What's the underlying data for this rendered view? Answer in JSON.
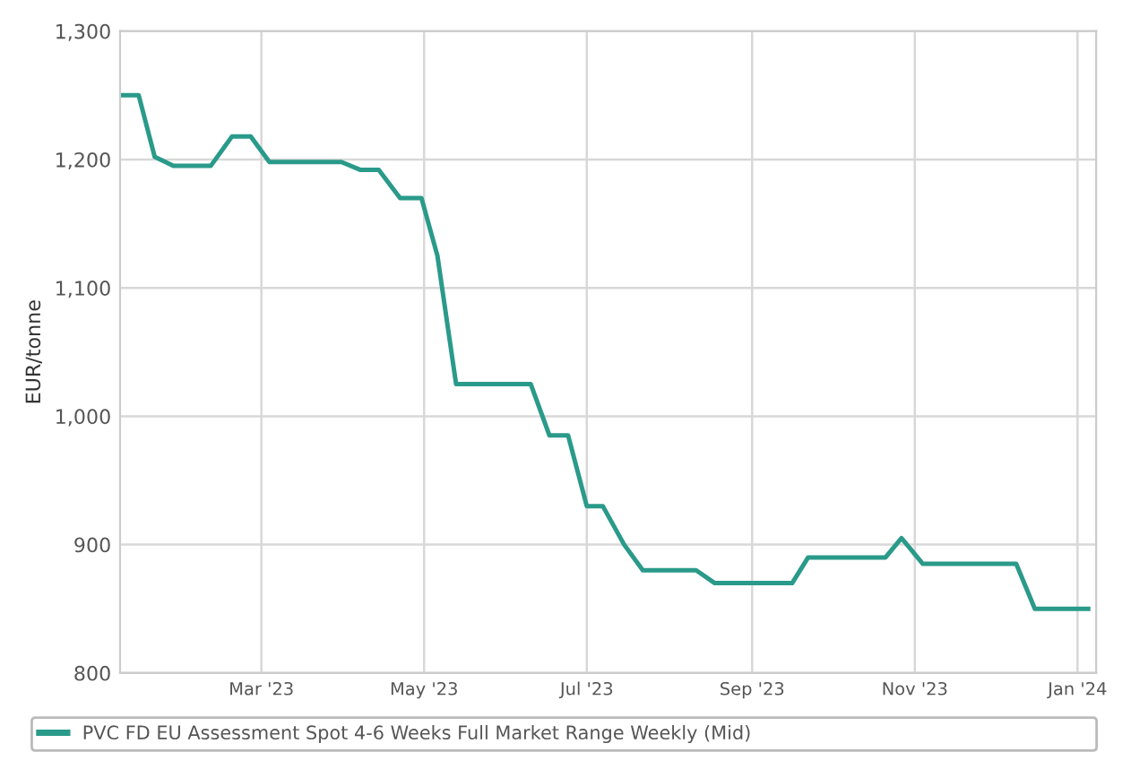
{
  "chart_data": {
    "type": "line",
    "ylabel": "EUR/tonne",
    "x": [
      "2023-01-07",
      "2023-01-14",
      "2023-01-20",
      "2023-01-27",
      "2023-02-10",
      "2023-02-18",
      "2023-02-25",
      "2023-03-04",
      "2023-03-31",
      "2023-04-07",
      "2023-04-14",
      "2023-04-22",
      "2023-04-30",
      "2023-05-06",
      "2023-05-13",
      "2023-06-10",
      "2023-06-17",
      "2023-06-24",
      "2023-07-01",
      "2023-07-07",
      "2023-07-15",
      "2023-07-22",
      "2023-08-11",
      "2023-08-18",
      "2023-09-16",
      "2023-09-22",
      "2023-10-21",
      "2023-10-27",
      "2023-11-04",
      "2023-12-09",
      "2023-12-16",
      "2024-01-05"
    ],
    "series": [
      {
        "name": "PVC FD EU Assessment Spot 4-6 Weeks Full Market Range Weekly (Mid)",
        "color": "#2a9a8a",
        "values": [
          1250,
          1250,
          1202,
          1195,
          1195,
          1218,
          1218,
          1198,
          1198,
          1192,
          1192,
          1170,
          1170,
          1125,
          1025,
          1025,
          985,
          985,
          930,
          930,
          900,
          880,
          880,
          870,
          870,
          890,
          890,
          905,
          885,
          885,
          850,
          850
        ]
      }
    ],
    "xlim": [
      "2023-01-07",
      "2024-01-08"
    ],
    "xticks": [
      {
        "value": "2023-03-01",
        "label": "Mar '23"
      },
      {
        "value": "2023-05-01",
        "label": "May '23"
      },
      {
        "value": "2023-07-01",
        "label": "Jul '23"
      },
      {
        "value": "2023-09-01",
        "label": "Sep '23"
      },
      {
        "value": "2023-11-01",
        "label": "Nov '23"
      },
      {
        "value": "2024-01-01",
        "label": "Jan '24"
      }
    ],
    "ylim": [
      800,
      1300
    ],
    "yticks": [
      {
        "value": 800,
        "label": "800"
      },
      {
        "value": 900,
        "label": "900"
      },
      {
        "value": 1000,
        "label": "1,000"
      },
      {
        "value": 1100,
        "label": "1,100"
      },
      {
        "value": 1200,
        "label": "1,200"
      },
      {
        "value": 1300,
        "label": "1,300"
      }
    ],
    "grid": true,
    "legend": "bottom",
    "marker": "none",
    "line_style": "solid"
  }
}
